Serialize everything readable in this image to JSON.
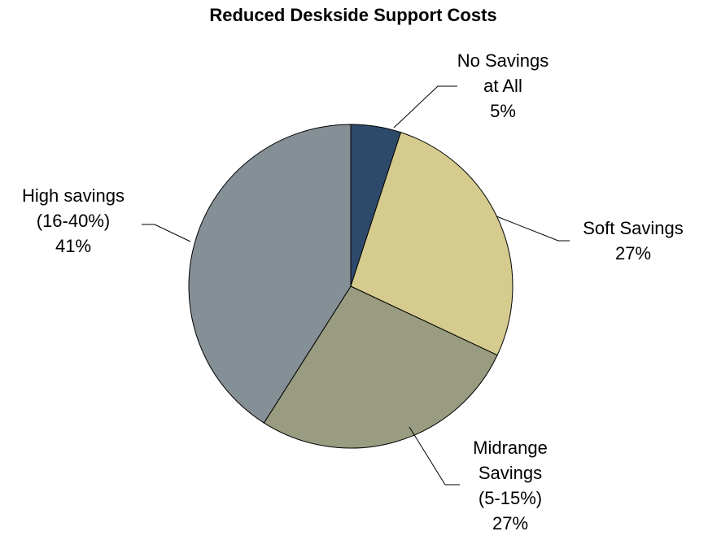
{
  "chart_data": {
    "type": "pie",
    "title": "Reduced Deskside Support Costs",
    "slices": [
      {
        "label_lines": [
          "No Savings",
          "at All"
        ],
        "value": 5,
        "value_text": "5%",
        "color": "#2e4a6b"
      },
      {
        "label_lines": [
          "Soft Savings"
        ],
        "value": 27,
        "value_text": "27%",
        "color": "#d5cb8e"
      },
      {
        "label_lines": [
          "Midrange",
          "Savings",
          "(5-15%)"
        ],
        "value": 27,
        "value_text": "27%",
        "color": "#999c80"
      },
      {
        "label_lines": [
          "High savings",
          "(16-40%)"
        ],
        "value": 41,
        "value_text": "41%",
        "color": "#858f96"
      }
    ],
    "start_angle": "12 o'clock",
    "direction": "clockwise",
    "legend": "none"
  }
}
